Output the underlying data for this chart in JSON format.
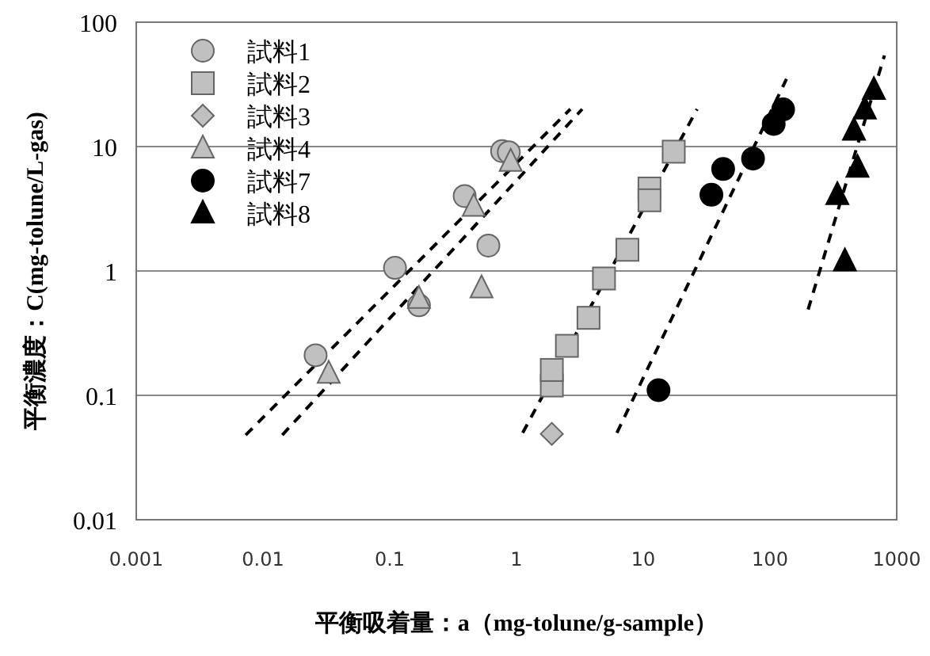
{
  "chart_data": {
    "type": "scatter",
    "xlabel": "平衡吸着量：a（mg-tolune/g-sample）",
    "ylabel": "平衡濃度：C(mg-tolune/L-gas)",
    "log": "xy",
    "grid": "y",
    "legend": "top left",
    "xlim": [
      0.001,
      1000
    ],
    "xticks": [
      0.001,
      0.01,
      0.1,
      1,
      10,
      100,
      1000
    ],
    "ylim": [
      0.01,
      100
    ],
    "yticks": [
      0.01,
      0.1,
      1,
      10,
      100
    ],
    "series": [
      {
        "name": "試料1",
        "type": "scatter",
        "marker": "circle",
        "color": "#c0c0c0",
        "x": [
          0.026,
          0.11,
          0.17,
          0.39,
          0.6,
          0.77,
          0.87
        ],
        "values": [
          0.21,
          1.06,
          0.53,
          4.0,
          1.6,
          9.2,
          9.0
        ]
      },
      {
        "name": "試料2",
        "type": "scatter",
        "marker": "square",
        "color": "#c0c0c0",
        "x": [
          1.9,
          1.9,
          2.5,
          3.7,
          4.9,
          7.5,
          11.2,
          11.2,
          17.4
        ],
        "values": [
          0.12,
          0.16,
          0.25,
          0.42,
          0.87,
          1.48,
          4.6,
          3.7,
          9.1
        ]
      },
      {
        "name": "試料3",
        "type": "scatter",
        "marker": "diamond",
        "color": "#c0c0c0",
        "x": [
          1.9
        ],
        "values": [
          0.049
        ]
      },
      {
        "name": "試料4",
        "type": "scatter",
        "marker": "triangle",
        "color": "#c0c0c0",
        "x": [
          0.033,
          0.17,
          0.46,
          0.53,
          0.9
        ],
        "values": [
          0.15,
          0.6,
          3.3,
          0.73,
          7.6
        ]
      },
      {
        "name": "試料7",
        "type": "scatter",
        "marker": "circle",
        "color": "#000000",
        "x": [
          13.2,
          34.5,
          42.7,
          73.5,
          107,
          127
        ],
        "values": [
          0.11,
          4.1,
          6.6,
          8.0,
          15.2,
          19.9
        ]
      },
      {
        "name": "試料8",
        "type": "scatter",
        "marker": "triangle",
        "color": "#000000",
        "x": [
          390,
          340,
          490,
          460,
          560,
          660
        ],
        "values": [
          1.2,
          4.1,
          6.8,
          13.5,
          20,
          28.7
        ]
      },
      {
        "type": "line",
        "line_style": "dashed",
        "color": "#000000",
        "x": [
          0.0073,
          2.66
        ],
        "values": [
          0.048,
          20
        ]
      },
      {
        "type": "line",
        "line_style": "dashed",
        "color": "#000000",
        "x": [
          0.0142,
          3.3
        ],
        "values": [
          0.048,
          20
        ]
      },
      {
        "type": "line",
        "line_style": "dashed",
        "color": "#000000",
        "x": [
          1.12,
          26.6
        ],
        "values": [
          0.05,
          20
        ]
      },
      {
        "type": "line",
        "line_style": "dashed",
        "color": "#000000",
        "x": [
          6.2,
          135
        ],
        "values": [
          0.05,
          35
        ]
      },
      {
        "type": "line",
        "line_style": "dashed",
        "color": "#000000",
        "x": [
          200,
          800
        ],
        "values": [
          0.49,
          54
        ]
      }
    ]
  }
}
